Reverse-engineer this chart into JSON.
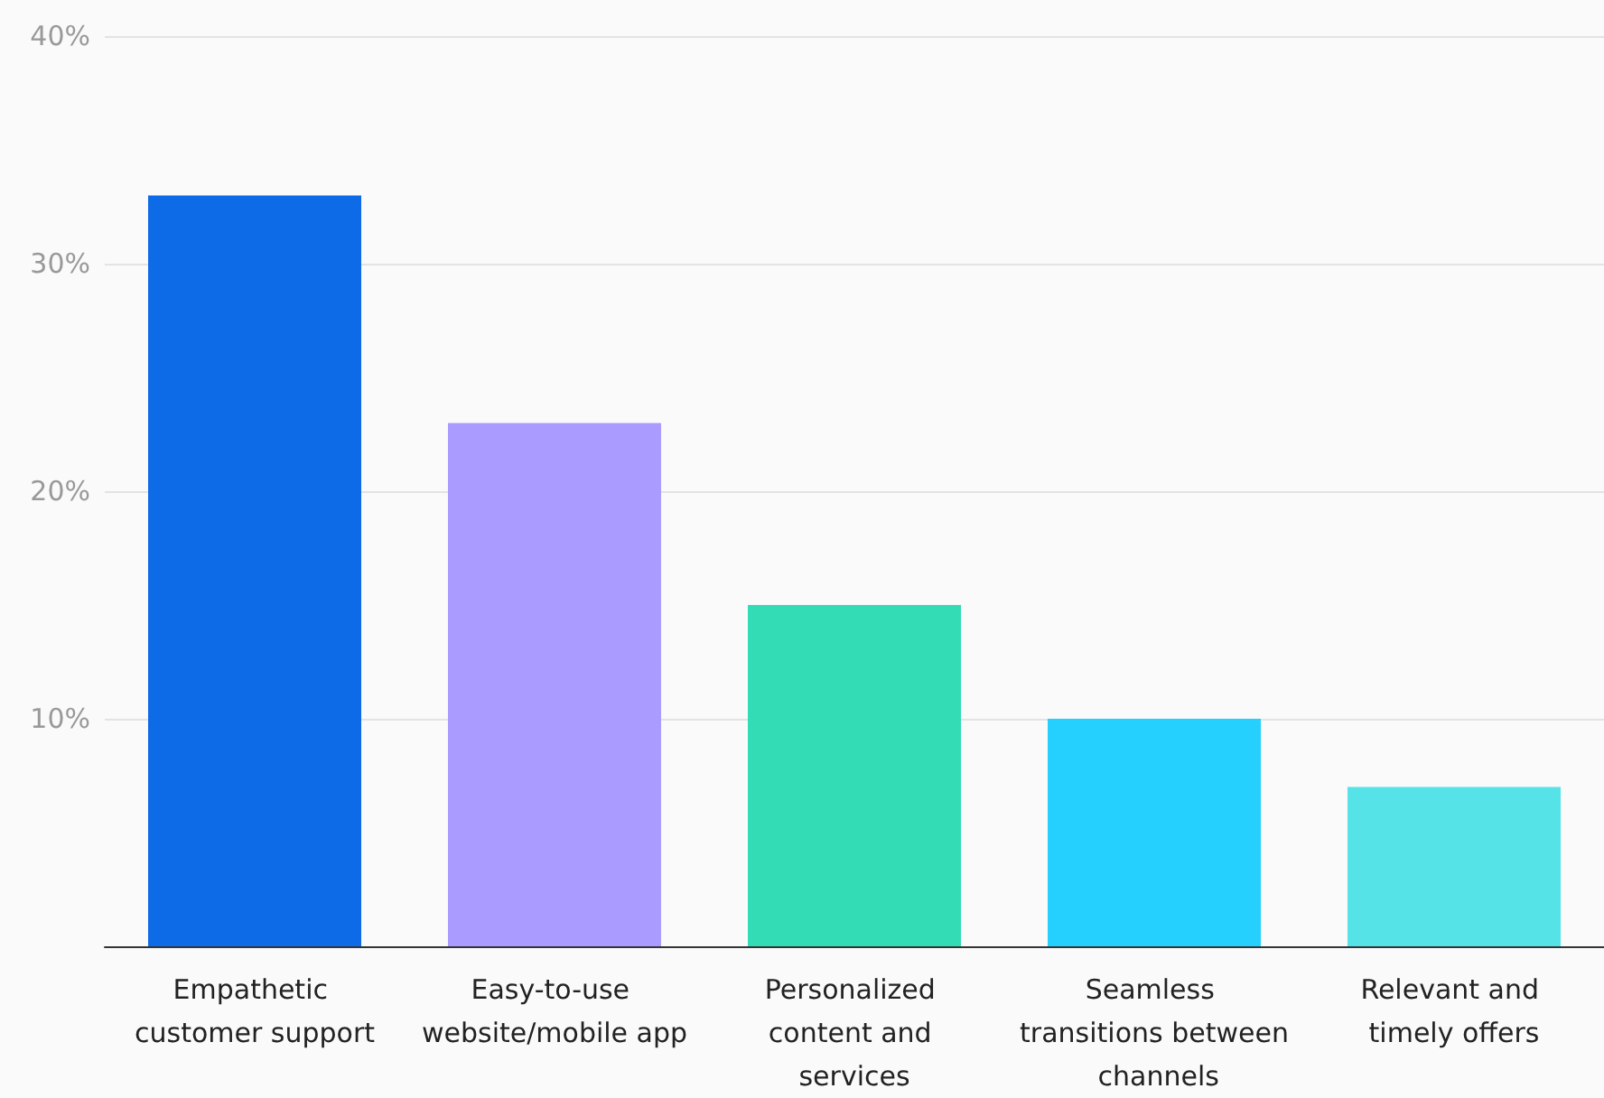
{
  "chart_data": {
    "type": "bar",
    "categories": [
      "Empathetic customer support",
      "Easy-to-use website/mobile app",
      "Personalized content and services",
      "Seamless transitions between channels",
      "Relevant and timely offers"
    ],
    "values": [
      33,
      23,
      15,
      10,
      7
    ],
    "colors": [
      "#0e6be8",
      "#a99bff",
      "#33dcb4",
      "#25cffe",
      "#55e3e8"
    ],
    "ylim": [
      0,
      40
    ],
    "yticks": [
      {
        "value": 0,
        "label": null
      },
      {
        "value": 10,
        "label": "10%"
      },
      {
        "value": 20,
        "label": "20%"
      },
      {
        "value": 30,
        "label": "30%"
      },
      {
        "value": 40,
        "label": "40%"
      }
    ],
    "grid": "y"
  }
}
